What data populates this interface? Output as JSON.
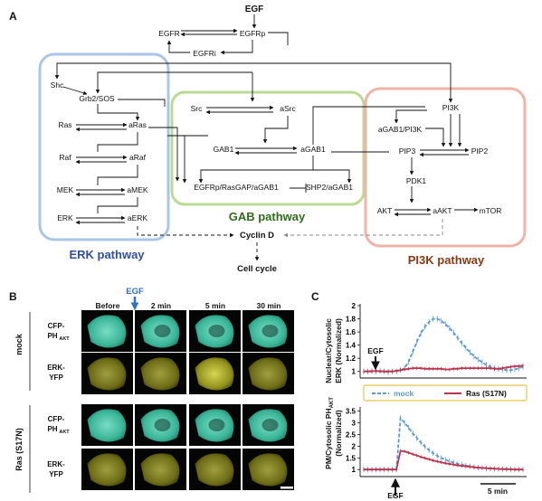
{
  "panel_a": {
    "letter": "A",
    "nodes": {
      "egf": "EGF",
      "egfr": "EGFR",
      "egfrp": "EGFRp",
      "egfri": "EGFRi",
      "shc": "Shc",
      "grb2sos": "Grb2/SOS",
      "ras": "Ras",
      "aras": "aRas",
      "raf": "Raf",
      "araf": "aRaf",
      "mek": "MEK",
      "amek": "aMEK",
      "erk": "ERK",
      "aerk": "aERK",
      "src": "Src",
      "asrc": "aSrc",
      "gab1": "GAB1",
      "agab1": "aGAB1",
      "complex": "EGFRp/RasGAP/aGAB1",
      "shp2": "SHP2/aGAB1",
      "pi3k": "PI3K",
      "agab1pi3k": "aGAB1/PI3K",
      "pip3": "PIP3",
      "pip2": "PIP2",
      "pdk1": "PDK1",
      "akt": "AKT",
      "aakt": "aAKT",
      "mtor": "mTOR",
      "cyclind": "Cyclin D",
      "cellcycle": "Cell cycle"
    },
    "pathways": {
      "erk": "ERK pathway",
      "gab": "GAB pathway",
      "pi3k": "PI3K pathway"
    },
    "colors": {
      "erk_box": "#a9c6e8",
      "gab_box": "#b9db93",
      "pi3k_box": "#f0b3a6",
      "erk_label": "#2e4fa3",
      "gab_label": "#2e6b1a",
      "pi3k_label": "#8a3a12"
    }
  },
  "panel_b": {
    "letter": "B",
    "egf": "EGF",
    "egf_color": "#2e6fc4",
    "times": [
      "Before",
      "2 min",
      "5 min",
      "30 min"
    ],
    "conditions": [
      "mock",
      "Ras (S17N)"
    ],
    "row_labels": [
      [
        "CFP-",
        "PH",
        "AKT"
      ],
      [
        "ERK-",
        "YFP",
        ""
      ],
      [
        "CFP-",
        "PH",
        "AKT"
      ],
      [
        "ERK-",
        "YFP",
        ""
      ]
    ]
  },
  "panel_c": {
    "letter": "C",
    "egf": "EGF",
    "scale": "5 min",
    "legend": {
      "mock": "mock",
      "ras": "Ras (S17N)"
    },
    "colors": {
      "mock": "#5b9bd5",
      "ras": "#c0314b",
      "legend_border": "#e8c547"
    },
    "top": {
      "ylabel": [
        "Nuclear/Cytosolic",
        "ERK (Normalized)"
      ],
      "ticks": [
        "1",
        "1.2",
        "1.4",
        "1.6",
        "1.8",
        "2"
      ]
    },
    "bottom": {
      "ylabel": [
        "PM/Cytosolic PH",
        "AKT",
        "(Normalized)"
      ],
      "ticks": [
        "1",
        "1.5",
        "2",
        "2.5",
        "3",
        "3.5"
      ]
    }
  },
  "chart_data": [
    {
      "type": "line",
      "ylabel": "Nuclear/Cytosolic ERK (Normalized)",
      "ylim": [
        0.9,
        2.0
      ],
      "series": [
        {
          "name": "mock",
          "values": [
            1.0,
            1.0,
            1.01,
            1.0,
            1.01,
            1.0,
            0.99,
            1.0,
            1.0,
            1.02,
            1.05,
            1.15,
            1.3,
            1.45,
            1.58,
            1.68,
            1.75,
            1.8,
            1.8,
            1.77,
            1.72,
            1.66,
            1.59,
            1.51,
            1.43,
            1.36,
            1.29,
            1.23,
            1.18,
            1.14,
            1.1,
            1.07,
            1.05,
            1.04,
            1.03,
            1.02,
            1.02,
            1.03,
            1.05,
            1.07
          ]
        },
        {
          "name": "Ras (S17N)",
          "values": [
            1.0,
            1.0,
            1.0,
            1.01,
            1.0,
            1.0,
            1.0,
            1.0,
            1.01,
            1.02,
            1.03,
            1.04,
            1.05,
            1.05,
            1.05,
            1.04,
            1.04,
            1.04,
            1.04,
            1.04,
            1.03,
            1.03,
            1.04,
            1.04,
            1.05,
            1.05,
            1.05,
            1.05,
            1.05,
            1.05,
            1.05,
            1.05,
            1.04,
            1.04,
            1.05,
            1.06,
            1.07,
            1.08,
            1.08,
            1.09
          ]
        }
      ]
    },
    {
      "type": "line",
      "ylabel": "PM/Cytosolic PHAKT (Normalized)",
      "ylim": [
        0.7,
        3.6
      ],
      "series": [
        {
          "name": "mock",
          "values": [
            1.0,
            1.0,
            1.0,
            1.0,
            1.0,
            1.0,
            1.0,
            1.0,
            1.0,
            3.2,
            3.0,
            2.8,
            2.55,
            2.35,
            2.15,
            1.98,
            1.83,
            1.7,
            1.59,
            1.5,
            1.42,
            1.35,
            1.3,
            1.25,
            1.21,
            1.17,
            1.14,
            1.11,
            1.09,
            1.07,
            1.05,
            1.04,
            1.03,
            1.02,
            1.02,
            1.01,
            1.01,
            1.0,
            1.0,
            1.0
          ]
        },
        {
          "name": "Ras (S17N)",
          "values": [
            1.0,
            1.0,
            1.0,
            1.0,
            1.0,
            1.0,
            1.0,
            1.0,
            1.0,
            1.8,
            1.78,
            1.72,
            1.66,
            1.6,
            1.54,
            1.49,
            1.44,
            1.39,
            1.35,
            1.31,
            1.27,
            1.24,
            1.21,
            1.18,
            1.16,
            1.14,
            1.12,
            1.1,
            1.08,
            1.07,
            1.06,
            1.05,
            1.04,
            1.03,
            1.02,
            1.02,
            1.01,
            1.0,
            1.0,
            1.0
          ]
        }
      ]
    }
  ]
}
